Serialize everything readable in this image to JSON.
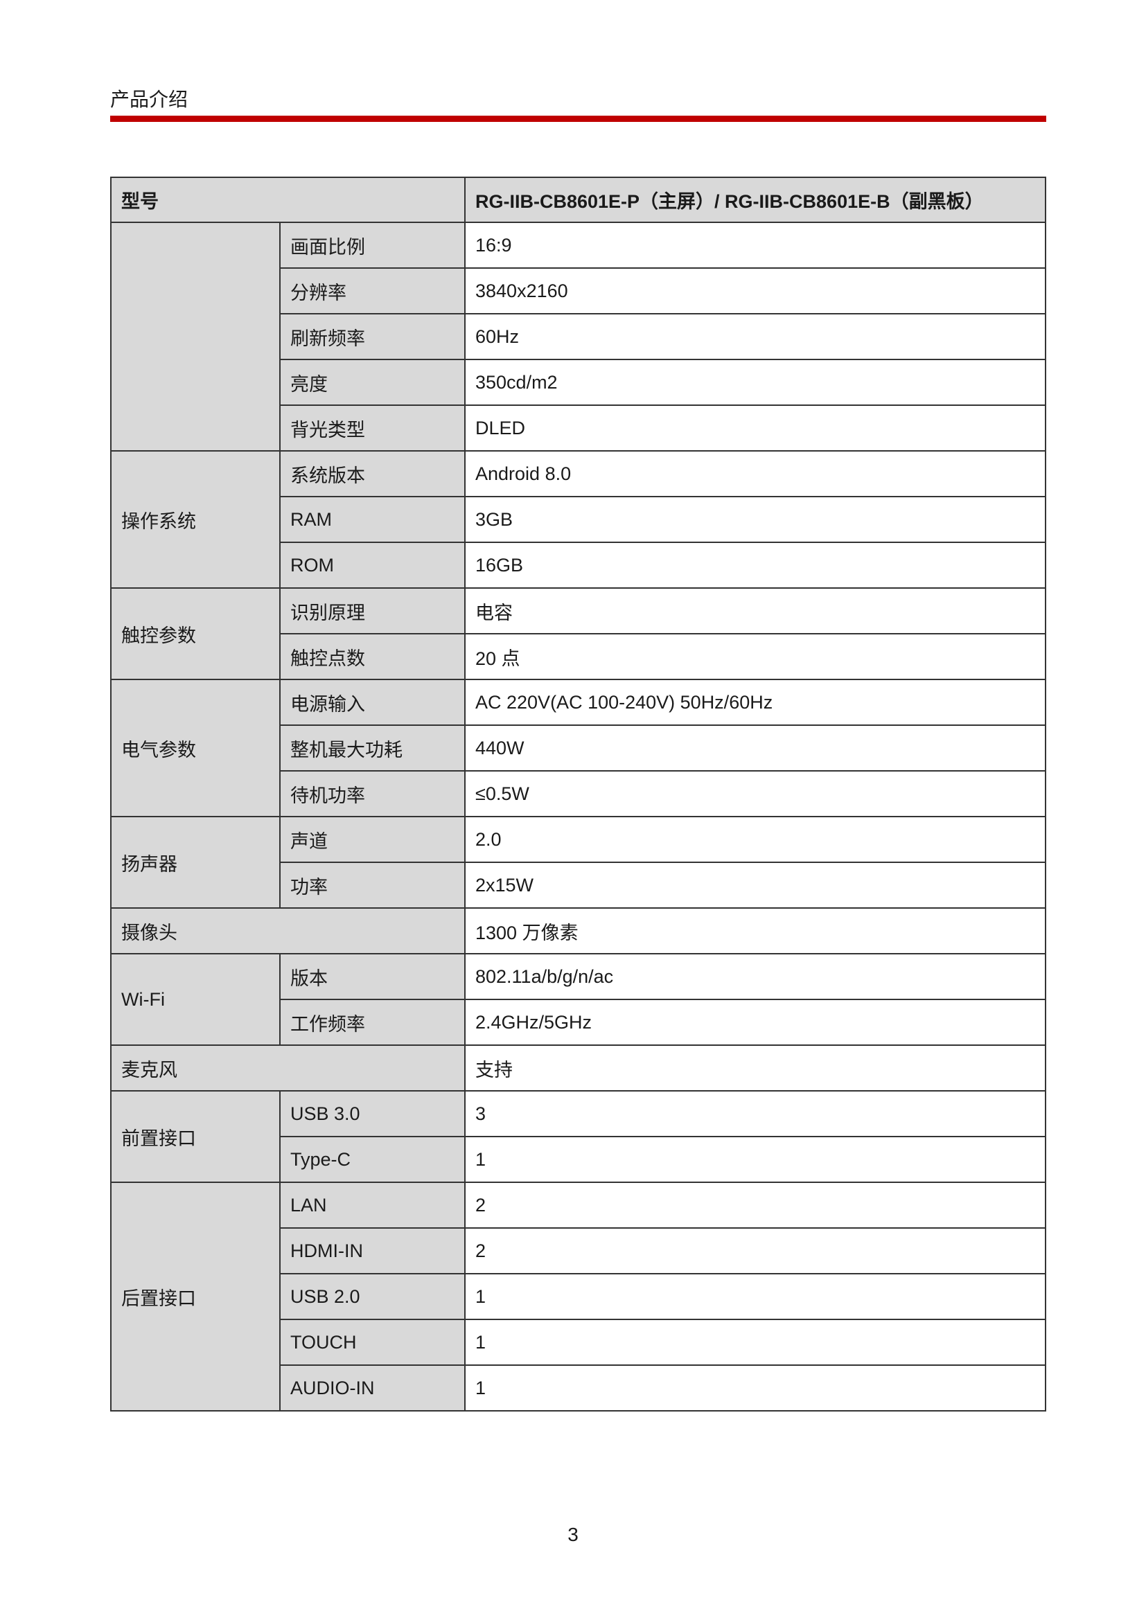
{
  "header": {
    "title": "产品介绍",
    "accent_color": "#c00000"
  },
  "table": {
    "model_label": "型号",
    "model_value": "RG-IIB-CB8601E-P（主屏）/ RG-IIB-CB8601E-B（副黑板）",
    "groups": [
      {
        "name": "",
        "rows": [
          [
            "画面比例",
            "16:9"
          ],
          [
            "分辨率",
            "3840x2160"
          ],
          [
            "刷新频率",
            "60Hz"
          ],
          [
            "亮度",
            "350cd/m2"
          ],
          [
            "背光类型",
            "DLED"
          ]
        ]
      },
      {
        "name": "操作系统",
        "rows": [
          [
            "系统版本",
            "Android 8.0"
          ],
          [
            "RAM",
            "3GB"
          ],
          [
            "ROM",
            "16GB"
          ]
        ]
      },
      {
        "name": "触控参数",
        "rows": [
          [
            "识别原理",
            "电容"
          ],
          [
            "触控点数",
            "20 点"
          ]
        ]
      },
      {
        "name": "电气参数",
        "rows": [
          [
            "电源输入",
            "AC 220V(AC 100-240V) 50Hz/60Hz"
          ],
          [
            "整机最大功耗",
            "440W"
          ],
          [
            "待机功率",
            "≤0.5W"
          ]
        ]
      },
      {
        "name": "扬声器",
        "rows": [
          [
            "声道",
            "2.0"
          ],
          [
            "功率",
            "2x15W"
          ]
        ]
      },
      {
        "name": "摄像头",
        "value": "1300 万像素"
      },
      {
        "name": "Wi-Fi",
        "rows": [
          [
            "版本",
            "802.11a/b/g/n/ac"
          ],
          [
            "工作频率",
            "2.4GHz/5GHz"
          ]
        ]
      },
      {
        "name": "麦克风",
        "value": "支持"
      },
      {
        "name": "前置接口",
        "rows": [
          [
            "USB 3.0",
            "3"
          ],
          [
            "Type-C",
            "1"
          ]
        ]
      },
      {
        "name": "后置接口",
        "rows": [
          [
            "LAN",
            "2"
          ],
          [
            "HDMI-IN",
            "2"
          ],
          [
            "USB 2.0",
            "1"
          ],
          [
            "TOUCH",
            "1"
          ],
          [
            "AUDIO-IN",
            "1"
          ]
        ]
      }
    ]
  },
  "footer": {
    "page_number": "3"
  }
}
